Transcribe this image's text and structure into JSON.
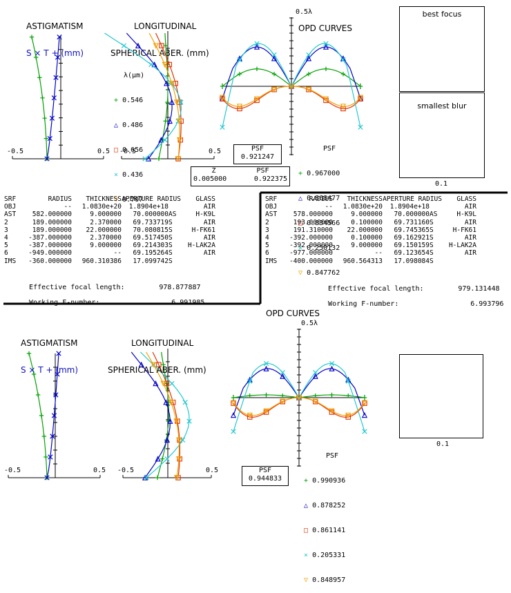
{
  "top": {
    "astig_title": [
      "ASTIGMATISM",
      "S × T + (mm)"
    ],
    "lsa_title": [
      "LONGITUDINAL",
      "SPHERICAL ABER. (mm)"
    ],
    "astig_ticks": [
      "-0.5",
      "0.5"
    ],
    "lsa_ticks": [
      "-0.5",
      "0.5"
    ],
    "lambda_label": "λ(μm)",
    "wavelengths": [
      "0.546",
      "0.486",
      "0.656",
      "0.436",
      "0.707"
    ],
    "opd_title": "OPD CURVES",
    "opd_scale": "0.5λ",
    "psf_label": "PSF",
    "psf_values": [
      "0.967000",
      "0.868477",
      "0.834566",
      "0.250132",
      "0.847762"
    ],
    "psf_box": {
      "label": "PSF",
      "value": "0.921247"
    },
    "z_box": {
      "z_label": "Z",
      "psf_label": "PSF",
      "z_value": "0.005000",
      "psf_value": "0.922375"
    },
    "spot1_label": "best focus",
    "spot2_label": "smallest blur",
    "spot_scale": "0.1"
  },
  "table_left": {
    "header": [
      "SRF",
      "RADIUS",
      "THICKNESS",
      "APERTURE RADIUS",
      "GLASS"
    ],
    "rows": [
      [
        "OBJ",
        "--",
        "1.0830e+20",
        "1.8904e+18",
        "",
        "AIR"
      ],
      [
        "AST",
        "582.000000",
        "9.000000",
        "70.000000",
        "AS",
        "H-K9L"
      ],
      [
        "2",
        "189.000000",
        "2.370000",
        "69.733719",
        "S",
        "AIR"
      ],
      [
        "3",
        "189.000000",
        "22.000000",
        "70.080815",
        "S",
        "H-FK61"
      ],
      [
        "4",
        "-387.000000",
        "2.370000",
        "69.517450",
        "S",
        "AIR"
      ],
      [
        "5",
        "-387.000000",
        "9.000000",
        "69.214303",
        "S",
        "H-LAK2A"
      ],
      [
        "6",
        "-949.000000",
        "--",
        "69.195264",
        "S",
        "AIR"
      ],
      [
        "IMS",
        "-360.000000",
        "960.310386",
        "17.099742",
        "S",
        ""
      ]
    ],
    "efl_label": "Effective focal length:",
    "efl_value": "978.877887",
    "fnum_label": "Working F-number:",
    "fnum_value": "6.991985"
  },
  "table_right": {
    "header": [
      "SRF",
      "RADIUS",
      "THICKNESS",
      "APERTURE RADIUS",
      "GLASS"
    ],
    "rows": [
      [
        "OBJ",
        "--",
        "1.0830e+20",
        "1.8904e+18",
        "",
        "AIR"
      ],
      [
        "AST",
        "578.000000",
        "9.000000",
        "70.000000",
        "AS",
        "H-K9L"
      ],
      [
        "2",
        "193.000000",
        "0.100000",
        "69.731160",
        "S",
        "AIR"
      ],
      [
        "3",
        "191.310000",
        "22.000000",
        "69.745365",
        "S",
        "H-FK61"
      ],
      [
        "4",
        "-392.000000",
        "0.100000",
        "69.162921",
        "S",
        "AIR"
      ],
      [
        "5",
        "-392.000000",
        "9.000000",
        "69.150159",
        "S",
        "H-LAK2A"
      ],
      [
        "6",
        "-977.000000",
        "--",
        "69.123654",
        "S",
        "AIR"
      ],
      [
        "IMS",
        "-400.000000",
        "960.564313",
        "17.098084",
        "S",
        ""
      ]
    ],
    "efl_label": "Effective focal length:",
    "efl_value": "979.131448",
    "fnum_label": "Working F-number:",
    "fnum_value": "6.993796"
  },
  "bottom": {
    "astig_title": [
      "ASTIGMATISM",
      "S × T + (mm)"
    ],
    "lsa_title": [
      "LONGITUDINAL",
      "SPHERICAL ABER. (mm)"
    ],
    "astig_ticks": [
      "-0.5",
      "0.5"
    ],
    "lsa_ticks": [
      "-0.5",
      "0.5"
    ],
    "opd_title": "OPD CURVES",
    "opd_scale": "0.5λ",
    "psf_label": "PSF",
    "psf_values": [
      "0.990936",
      "0.878252",
      "0.861141",
      "0.205331",
      "0.848957"
    ],
    "psf_box": {
      "label": "PSF",
      "value": "0.944833"
    },
    "spot_scale": "0.1"
  },
  "colors": {
    "wl_0546": "#00a000",
    "wl_0486": "#0000c8",
    "wl_0656": "#e03000",
    "wl_0436": "#20c8d0",
    "wl_0707": "#f0a000"
  },
  "markers": [
    "plus",
    "triangle",
    "square",
    "cross",
    "triangle-down"
  ]
}
